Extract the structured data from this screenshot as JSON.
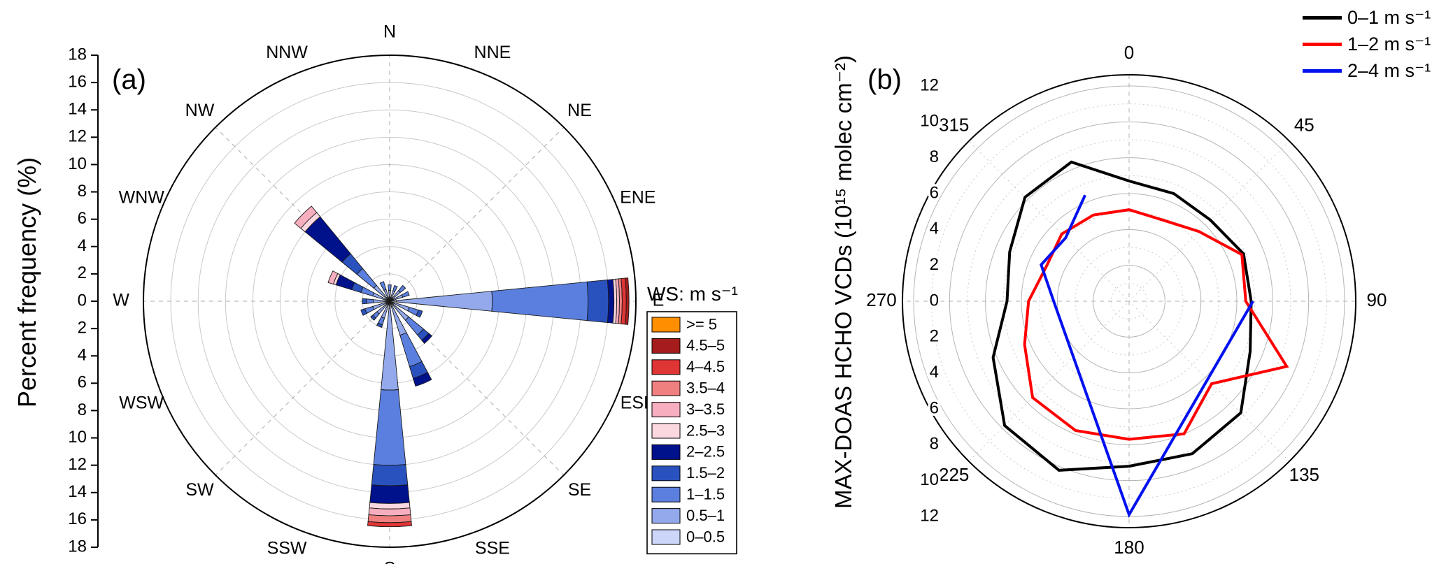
{
  "figure": {
    "background": "#ffffff",
    "panel_a_label": "(a)",
    "panel_b_label": "(b)"
  },
  "chart_data": [
    {
      "id": "wind-rose",
      "type": "polar-stacked-bar",
      "panel": "(a)",
      "radial_axis_label": "Percent frequency (%)",
      "radial_ticks": [
        0,
        2,
        4,
        6,
        8,
        10,
        12,
        14,
        16,
        18
      ],
      "r_max": 18,
      "grid": "circles every 2%, dashed spokes every 45 deg",
      "directions": [
        "N",
        "NNE",
        "NE",
        "ENE",
        "E",
        "ESE",
        "SE",
        "SSE",
        "S",
        "SSW",
        "SW",
        "WSW",
        "W",
        "WNW",
        "NW",
        "NNW"
      ],
      "legend_title": "WS: m s⁻¹",
      "speed_bins": [
        {
          "label": ">= 5",
          "color": "#FF8F00"
        },
        {
          "label": "4.5–5",
          "color": "#A61C1C"
        },
        {
          "label": "4–4.5",
          "color": "#E03535"
        },
        {
          "label": "3.5–4",
          "color": "#F08080"
        },
        {
          "label": "3–3.5",
          "color": "#F7AFC0"
        },
        {
          "label": "2.5–3",
          "color": "#FBD7DF"
        },
        {
          "label": "2–2.5",
          "color": "#00118C"
        },
        {
          "label": "1.5–2",
          "color": "#2A52BE"
        },
        {
          "label": "1–1.5",
          "color": "#5B7FDE"
        },
        {
          "label": "0.5–1",
          "color": "#93A9EC"
        },
        {
          "label": "0–0.5",
          "color": "#CBD6F8"
        }
      ],
      "stacks_bin_order": [
        "0–0.5",
        "0.5–1",
        "1–1.5",
        "1.5–2",
        "2–2.5",
        "2.5–3",
        "3–3.5",
        "3.5–4",
        "4–4.5",
        "4.5–5",
        ">= 5"
      ],
      "frequencies": {
        "N": [
          0.3,
          0.5,
          0.4,
          0,
          0,
          0,
          0,
          0,
          0,
          0,
          0
        ],
        "NNE": [
          0.3,
          0.5,
          0.4,
          0,
          0,
          0,
          0,
          0,
          0,
          0,
          0
        ],
        "NE": [
          0.3,
          0.7,
          0.5,
          0,
          0,
          0,
          0,
          0,
          0,
          0,
          0
        ],
        "ENE": [
          0.3,
          0.7,
          0.5,
          0,
          0,
          0,
          0,
          0,
          0,
          0,
          0
        ],
        "E": [
          0.5,
          7.0,
          7.0,
          1.5,
          0.4,
          0.2,
          0.2,
          0.2,
          0.3,
          0.2,
          0
        ],
        "ESE": [
          0.3,
          1.2,
          0.7,
          0.3,
          0,
          0,
          0,
          0,
          0,
          0,
          0
        ],
        "SE": [
          0.3,
          1.5,
          1.4,
          0.5,
          0.3,
          0,
          0,
          0,
          0,
          0,
          0
        ],
        "SSE": [
          0.4,
          2.2,
          2.4,
          0.9,
          0.6,
          0,
          0,
          0,
          0,
          0,
          0
        ],
        "S": [
          0.5,
          6.0,
          5.5,
          1.5,
          1.3,
          0.4,
          0.5,
          0.5,
          0.3,
          0,
          0
        ],
        "SSW": [
          0.3,
          1.0,
          0.5,
          0.2,
          0,
          0,
          0,
          0,
          0,
          0,
          0
        ],
        "SW": [
          0.3,
          0.9,
          0.4,
          0.2,
          0,
          0,
          0,
          0,
          0,
          0,
          0
        ],
        "WSW": [
          0.3,
          1.0,
          0.6,
          0.3,
          0,
          0,
          0,
          0,
          0,
          0,
          0
        ],
        "W": [
          0.3,
          0.9,
          0.5,
          0.3,
          0,
          0,
          0,
          0,
          0,
          0,
          0
        ],
        "WNW": [
          0.3,
          1.0,
          0.9,
          0.7,
          1.2,
          0.2,
          0.4,
          0,
          0,
          0,
          0
        ],
        "NW": [
          0.3,
          1.2,
          1.6,
          1.4,
          3.5,
          0.4,
          0.6,
          0,
          0,
          0,
          0
        ],
        "NNW": [
          0.3,
          0.6,
          0.6,
          0,
          0,
          0,
          0,
          0,
          0,
          0,
          0
        ]
      }
    },
    {
      "id": "hcho-polar",
      "type": "polar-line",
      "panel": "(b)",
      "radial_axis_label": "MAX-DOAS HCHO VCDs (10¹⁵ molec cm⁻²)",
      "radial_ticks": [
        0,
        2,
        4,
        6,
        8,
        10,
        12
      ],
      "r_max": 12,
      "angle_labels": [
        0,
        45,
        90,
        135,
        180,
        225,
        270,
        315
      ],
      "grid": "solid circles every 2, dotted circles every 1, dashed diameters",
      "legend_position": "top-right",
      "series": [
        {
          "name": "0–1 m s⁻¹",
          "color": "#000000",
          "closed": true,
          "angles": [
            0,
            22.5,
            45,
            67.5,
            90,
            112.5,
            135,
            157.5,
            180,
            202.5,
            225,
            247.5,
            270,
            292.5,
            315,
            337.5
          ],
          "values": [
            6.7,
            6.5,
            6.4,
            6.9,
            6.8,
            7.3,
            8.8,
            9.2,
            9.2,
            10.2,
            9.8,
            8.2,
            6.8,
            7.2,
            8.2,
            8.4
          ]
        },
        {
          "name": "1–2 m s⁻¹",
          "color": "#FF0000",
          "closed": true,
          "angles": [
            0,
            22.5,
            45,
            67.5,
            90,
            112.5,
            135,
            157.5,
            180,
            202.5,
            225,
            247.5,
            270,
            292.5,
            315,
            337.5
          ],
          "values": [
            5.1,
            4.9,
            5.5,
            6.8,
            6.5,
            9.5,
            6.5,
            8.0,
            7.7,
            7.8,
            7.6,
            6.3,
            5.6,
            5.0,
            5.3,
            5.2
          ]
        },
        {
          "name": "2–4 m s⁻¹",
          "color": "#0011EE",
          "closed": false,
          "angles": [
            337.5,
            315,
            292.5,
            270,
            180,
            90
          ],
          "values": [
            6.4,
            5.0,
            5.3,
            4.2,
            11.9,
            6.9
          ]
        }
      ]
    }
  ]
}
